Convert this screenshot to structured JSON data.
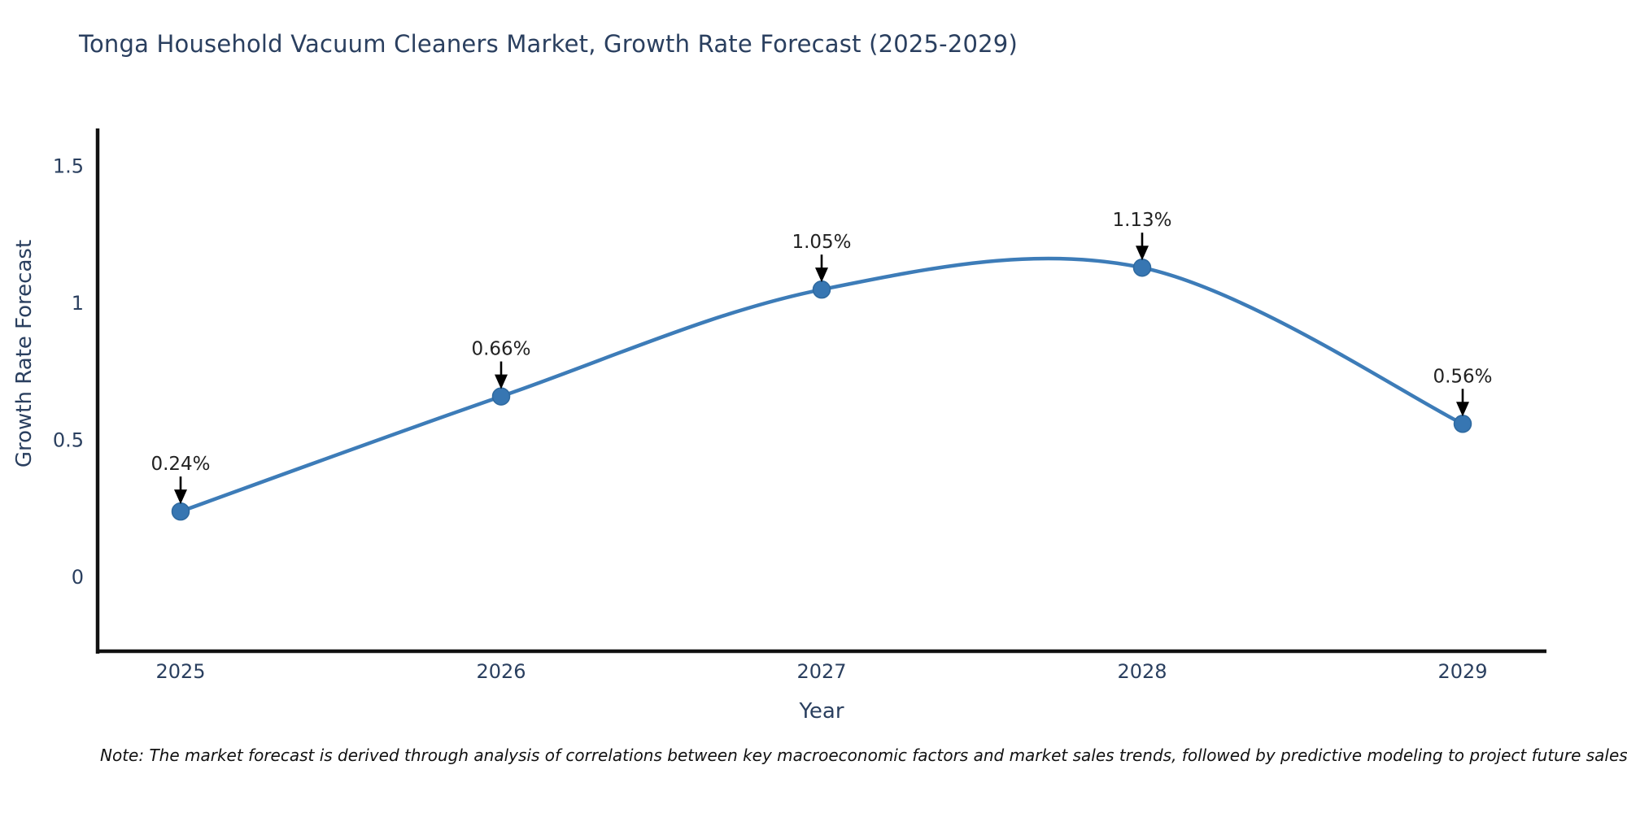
{
  "chart_data": {
    "type": "line",
    "title": "Tonga Household Vacuum Cleaners Market, Growth Rate Forecast (2025-2029)",
    "xlabel": "Year",
    "ylabel": "Growth Rate Forecast",
    "x": [
      2025,
      2026,
      2027,
      2028,
      2029
    ],
    "series": [
      {
        "name": "Growth Rate Forecast",
        "values": [
          0.24,
          0.66,
          1.05,
          1.13,
          0.56
        ]
      }
    ],
    "point_labels": [
      "0.24%",
      "0.66%",
      "1.05%",
      "1.13%",
      "0.56%"
    ],
    "xtick_labels": [
      "2025",
      "2026",
      "2027",
      "2028",
      "2029"
    ],
    "ytick_values": [
      0,
      0.5,
      1,
      1.5
    ],
    "ytick_labels": [
      "0",
      "0.5",
      "1",
      "1.5"
    ],
    "xlim": [
      2024.73,
      2029.27
    ],
    "ylim": [
      -0.28,
      1.63
    ],
    "grid": false,
    "legend_position": "none",
    "line_shape": "spline",
    "colors": {
      "line": "#3d7cb8",
      "marker_fill": "#3776b2",
      "marker_edge": "#2e699f",
      "axis_spine": "#111111",
      "tick_text": "#2a3f5f",
      "annotation_text": "#222222",
      "arrow": "#000000",
      "background": "#ffffff"
    }
  },
  "note": "Note: The market forecast is derived through analysis of correlations between key macroeconomic factors and market sales trends, followed by predictive modeling to project future sales"
}
